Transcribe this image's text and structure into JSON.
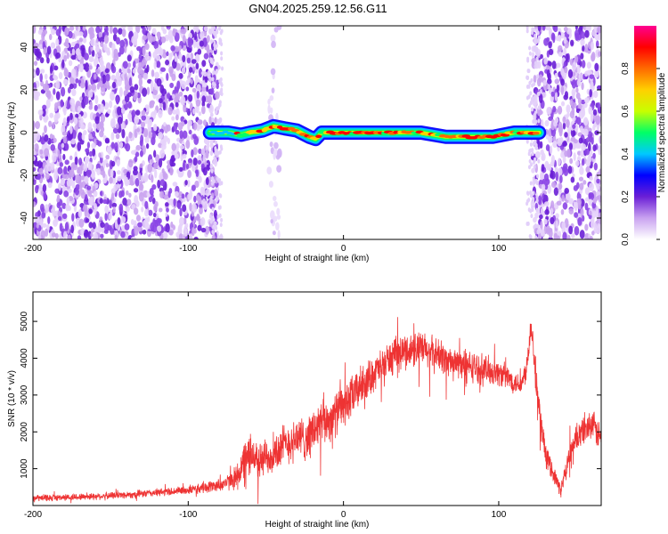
{
  "figure": {
    "title": "GN04.2025.259.12.56.G11"
  },
  "chart_data": [
    {
      "type": "heatmap",
      "title": "GN04.2025.259.12.56.G11",
      "xlabel": "Height of straight line (km)",
      "ylabel": "Frequency (Hz)",
      "xlim": [
        -200,
        166
      ],
      "ylim": [
        -50,
        50
      ],
      "x_ticks": [
        -200,
        -100,
        0,
        100
      ],
      "y_ticks": [
        -40,
        -20,
        0,
        20,
        40
      ],
      "colorbar": {
        "label": "Normalized spectral amplitude",
        "range": [
          0,
          1
        ],
        "ticks": [
          "0.0",
          "0.2",
          "0.4",
          "0.6",
          "0.8"
        ],
        "colors": [
          "#ffffff",
          "#c9a2f0",
          "#6a1fd6",
          "#0000ff",
          "#00c8ff",
          "#00ff66",
          "#c8ff00",
          "#ffd000",
          "#ff6a00",
          "#ff0000",
          "#ff0090"
        ]
      },
      "signal_track": {
        "frequency_hz": [
          [
            -86,
            0
          ],
          [
            -80,
            0
          ],
          [
            -74,
            0
          ],
          [
            -66,
            -1
          ],
          [
            -60,
            0
          ],
          [
            -52,
            1
          ],
          [
            -45,
            3
          ],
          [
            -38,
            2
          ],
          [
            -30,
            1
          ],
          [
            -22,
            -2
          ],
          [
            -18,
            -3
          ],
          [
            -14,
            0
          ],
          [
            -6,
            0
          ],
          [
            0,
            0
          ],
          [
            10,
            0
          ],
          [
            30,
            0
          ],
          [
            50,
            0
          ],
          [
            66,
            -2
          ],
          [
            80,
            -2
          ],
          [
            96,
            -2
          ],
          [
            110,
            0
          ],
          [
            120,
            0
          ],
          [
            126,
            0
          ]
        ],
        "x_range": [
          -86,
          126
        ]
      },
      "noise_regions": [
        {
          "x_range": [
            -200,
            -81
          ],
          "density": "high"
        },
        {
          "x_range": [
            -48,
            -41
          ],
          "density": "low"
        },
        {
          "x_range": [
            122,
            166
          ],
          "density": "high"
        }
      ]
    },
    {
      "type": "line",
      "xlabel": "Height of straight line (km)",
      "ylabel": "SNR (10 * v/v)",
      "xlim": [
        -200,
        166
      ],
      "ylim": [
        0,
        5800
      ],
      "x_ticks": [
        -200,
        -100,
        0,
        100
      ],
      "y_ticks": [
        1000,
        2000,
        3000,
        4000,
        5000
      ],
      "series": [
        {
          "color": "#ee3333",
          "envelope": {
            "x": [
              -200,
              -180,
              -160,
              -140,
              -120,
              -100,
              -90,
              -80,
              -75,
              -70,
              -66,
              -62,
              -58,
              -54,
              -50,
              -45,
              -40,
              -35,
              -30,
              -25,
              -20,
              -15,
              -10,
              -5,
              0,
              5,
              10,
              20,
              30,
              40,
              50,
              60,
              70,
              80,
              90,
              100,
              105,
              110,
              115,
              118,
              121,
              123,
              126,
              130,
              135,
              140,
              145,
              150,
              155,
              160,
              166
            ],
            "mean": [
              200,
              220,
              250,
              290,
              350,
              420,
              480,
              560,
              620,
              750,
              1000,
              1300,
              1400,
              1200,
              1300,
              1400,
              1600,
              1700,
              1850,
              1800,
              2000,
              2200,
              2300,
              2500,
              2700,
              2900,
              3200,
              3600,
              4000,
              4200,
              4250,
              4100,
              3900,
              3800,
              3700,
              3600,
              3500,
              3350,
              3300,
              3800,
              5000,
              3900,
              2600,
              1400,
              900,
              400,
              1300,
              1800,
              2100,
              2200,
              1800
            ],
            "spread": [
              150,
              150,
              160,
              170,
              180,
              200,
              250,
              300,
              350,
              500,
              900,
              1000,
              900,
              800,
              900,
              900,
              1000,
              900,
              1000,
              1000,
              1100,
              1000,
              1000,
              1000,
              1000,
              1000,
              900,
              800,
              800,
              800,
              800,
              800,
              700,
              700,
              700,
              600,
              600,
              500,
              500,
              600,
              700,
              800,
              700,
              500,
              400,
              300,
              500,
              600,
              700,
              700,
              700
            ]
          }
        }
      ]
    }
  ]
}
